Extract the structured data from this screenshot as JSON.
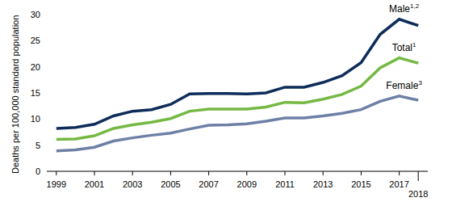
{
  "chart_data": {
    "type": "line",
    "y_label": "Deaths per 100,000 standard population",
    "x": [
      1999,
      2000,
      2001,
      2002,
      2003,
      2004,
      2005,
      2006,
      2007,
      2008,
      2009,
      2010,
      2011,
      2012,
      2013,
      2014,
      2015,
      2016,
      2017,
      2018
    ],
    "xlim": [
      1998.5,
      2018.5
    ],
    "xticks": [
      1999,
      2001,
      2003,
      2005,
      2007,
      2009,
      2011,
      2013,
      2015,
      2017,
      2018
    ],
    "ylim": [
      0,
      30
    ],
    "yticks": [
      0,
      5,
      10,
      15,
      20,
      25,
      30
    ],
    "grid": false,
    "legend": "none",
    "series": [
      {
        "name": "Male",
        "superscript": "1,2",
        "color": "#0e2c5a",
        "values": [
          8.2,
          8.4,
          9.0,
          10.6,
          11.5,
          11.8,
          12.8,
          14.8,
          14.9,
          14.9,
          14.8,
          15.0,
          16.1,
          16.1,
          17.0,
          18.3,
          20.8,
          26.2,
          29.1,
          27.9
        ]
      },
      {
        "name": "Total",
        "superscript": "1",
        "color": "#75b843",
        "values": [
          6.1,
          6.2,
          6.8,
          8.2,
          8.9,
          9.4,
          10.1,
          11.5,
          11.9,
          11.9,
          11.9,
          12.3,
          13.2,
          13.1,
          13.8,
          14.7,
          16.3,
          19.8,
          21.7,
          20.7
        ]
      },
      {
        "name": "Female",
        "superscript": "3",
        "color": "#6e80a6",
        "values": [
          3.9,
          4.1,
          4.6,
          5.8,
          6.4,
          6.9,
          7.3,
          8.1,
          8.8,
          8.9,
          9.1,
          9.6,
          10.2,
          10.2,
          10.6,
          11.1,
          11.8,
          13.4,
          14.4,
          13.6
        ]
      }
    ]
  }
}
